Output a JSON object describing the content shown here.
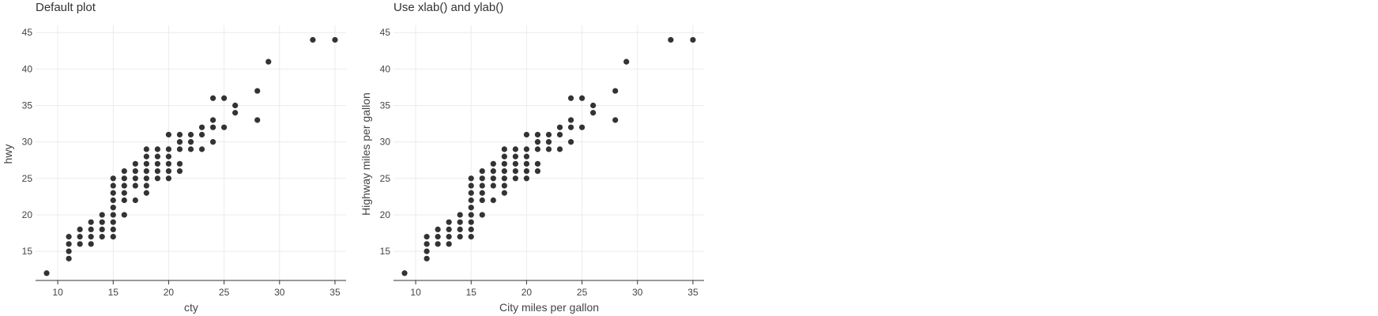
{
  "colors": {
    "point": "#333333",
    "grid": "#ebebeb",
    "axis": "#333333"
  },
  "chart_data": [
    {
      "type": "scatter",
      "title": "Default plot",
      "xlabel": "cty",
      "ylabel": "hwy",
      "xlim": [
        8,
        36
      ],
      "ylim": [
        11,
        46
      ],
      "x_ticks": [
        10,
        15,
        20,
        25,
        30,
        35
      ],
      "y_ticks": [
        15,
        20,
        25,
        30,
        35,
        40,
        45
      ],
      "grid": true,
      "points": [
        [
          9,
          12
        ],
        [
          11,
          14
        ],
        [
          11,
          15
        ],
        [
          11,
          16
        ],
        [
          11,
          17
        ],
        [
          12,
          16
        ],
        [
          12,
          17
        ],
        [
          12,
          18
        ],
        [
          13,
          16
        ],
        [
          13,
          17
        ],
        [
          13,
          18
        ],
        [
          13,
          19
        ],
        [
          14,
          17
        ],
        [
          14,
          18
        ],
        [
          14,
          19
        ],
        [
          14,
          20
        ],
        [
          15,
          17
        ],
        [
          15,
          18
        ],
        [
          15,
          19
        ],
        [
          15,
          20
        ],
        [
          15,
          21
        ],
        [
          15,
          22
        ],
        [
          15,
          23
        ],
        [
          15,
          24
        ],
        [
          15,
          25
        ],
        [
          16,
          20
        ],
        [
          16,
          22
        ],
        [
          16,
          23
        ],
        [
          16,
          24
        ],
        [
          16,
          25
        ],
        [
          16,
          26
        ],
        [
          17,
          22
        ],
        [
          17,
          24
        ],
        [
          17,
          25
        ],
        [
          17,
          26
        ],
        [
          17,
          27
        ],
        [
          18,
          23
        ],
        [
          18,
          24
        ],
        [
          18,
          25
        ],
        [
          18,
          26
        ],
        [
          18,
          27
        ],
        [
          18,
          28
        ],
        [
          18,
          29
        ],
        [
          19,
          25
        ],
        [
          19,
          26
        ],
        [
          19,
          27
        ],
        [
          19,
          28
        ],
        [
          19,
          29
        ],
        [
          20,
          25
        ],
        [
          20,
          26
        ],
        [
          20,
          27
        ],
        [
          20,
          28
        ],
        [
          20,
          29
        ],
        [
          20,
          31
        ],
        [
          21,
          26
        ],
        [
          21,
          27
        ],
        [
          21,
          29
        ],
        [
          21,
          30
        ],
        [
          21,
          31
        ],
        [
          22,
          29
        ],
        [
          22,
          30
        ],
        [
          22,
          31
        ],
        [
          23,
          29
        ],
        [
          23,
          31
        ],
        [
          23,
          32
        ],
        [
          24,
          30
        ],
        [
          24,
          32
        ],
        [
          24,
          33
        ],
        [
          24,
          36
        ],
        [
          25,
          32
        ],
        [
          25,
          36
        ],
        [
          26,
          34
        ],
        [
          26,
          35
        ],
        [
          28,
          33
        ],
        [
          28,
          37
        ],
        [
          29,
          41
        ],
        [
          33,
          44
        ],
        [
          35,
          44
        ]
      ]
    },
    {
      "type": "scatter",
      "title": "Use xlab() and ylab()",
      "xlabel": "City miles per gallon",
      "ylabel": "Highway miles per gallon",
      "xlim": [
        8,
        36
      ],
      "ylim": [
        11,
        46
      ],
      "x_ticks": [
        10,
        15,
        20,
        25,
        30,
        35
      ],
      "y_ticks": [
        15,
        20,
        25,
        30,
        35,
        40,
        45
      ],
      "grid": true,
      "points": [
        [
          9,
          12
        ],
        [
          11,
          14
        ],
        [
          11,
          15
        ],
        [
          11,
          16
        ],
        [
          11,
          17
        ],
        [
          12,
          16
        ],
        [
          12,
          17
        ],
        [
          12,
          18
        ],
        [
          13,
          16
        ],
        [
          13,
          17
        ],
        [
          13,
          18
        ],
        [
          13,
          19
        ],
        [
          14,
          17
        ],
        [
          14,
          18
        ],
        [
          14,
          19
        ],
        [
          14,
          20
        ],
        [
          15,
          17
        ],
        [
          15,
          18
        ],
        [
          15,
          19
        ],
        [
          15,
          20
        ],
        [
          15,
          21
        ],
        [
          15,
          22
        ],
        [
          15,
          23
        ],
        [
          15,
          24
        ],
        [
          15,
          25
        ],
        [
          16,
          20
        ],
        [
          16,
          22
        ],
        [
          16,
          23
        ],
        [
          16,
          24
        ],
        [
          16,
          25
        ],
        [
          16,
          26
        ],
        [
          17,
          22
        ],
        [
          17,
          24
        ],
        [
          17,
          25
        ],
        [
          17,
          26
        ],
        [
          17,
          27
        ],
        [
          18,
          23
        ],
        [
          18,
          24
        ],
        [
          18,
          25
        ],
        [
          18,
          26
        ],
        [
          18,
          27
        ],
        [
          18,
          28
        ],
        [
          18,
          29
        ],
        [
          19,
          25
        ],
        [
          19,
          26
        ],
        [
          19,
          27
        ],
        [
          19,
          28
        ],
        [
          19,
          29
        ],
        [
          20,
          25
        ],
        [
          20,
          26
        ],
        [
          20,
          27
        ],
        [
          20,
          28
        ],
        [
          20,
          29
        ],
        [
          20,
          31
        ],
        [
          21,
          26
        ],
        [
          21,
          27
        ],
        [
          21,
          29
        ],
        [
          21,
          30
        ],
        [
          21,
          31
        ],
        [
          22,
          29
        ],
        [
          22,
          30
        ],
        [
          22,
          31
        ],
        [
          23,
          29
        ],
        [
          23,
          31
        ],
        [
          23,
          32
        ],
        [
          24,
          30
        ],
        [
          24,
          32
        ],
        [
          24,
          33
        ],
        [
          24,
          36
        ],
        [
          25,
          32
        ],
        [
          25,
          36
        ],
        [
          26,
          34
        ],
        [
          26,
          35
        ],
        [
          28,
          33
        ],
        [
          28,
          37
        ],
        [
          29,
          41
        ],
        [
          33,
          44
        ],
        [
          35,
          44
        ]
      ]
    }
  ]
}
